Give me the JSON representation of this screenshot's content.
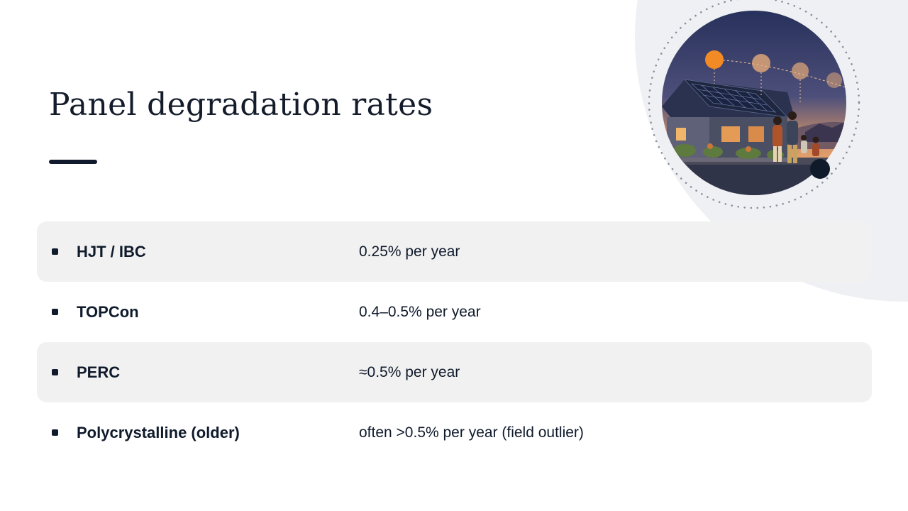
{
  "slide": {
    "title": "Panel degradation rates"
  },
  "rows": [
    {
      "technology": "HJT / IBC",
      "rate": "0.25% per year"
    },
    {
      "technology": "TOPCon",
      "rate": "0.4–0.5% per year"
    },
    {
      "technology": "PERC",
      "rate": "≈0.5% per year"
    },
    {
      "technology": "Polycrystalline (older)",
      "rate": "often >0.5% per year (field outlier)"
    }
  ],
  "illustration": {
    "subject": "family-house-solar-roof-sunset",
    "icons": [
      "sun-position-icon",
      "house-icon",
      "solar-panel-icon",
      "family-icon"
    ]
  },
  "colors": {
    "text": "#0f1a2b",
    "row_shade": "#f1f1f1",
    "background_blob": "#eef0f3",
    "sun": "#f28a25",
    "sky_top": "#2a3560",
    "sky_horizon": "#e9a46a"
  }
}
